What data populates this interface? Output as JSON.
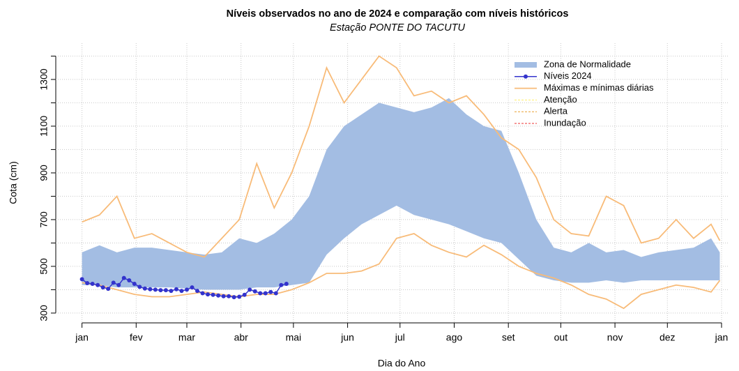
{
  "chart_data": {
    "type": "line",
    "title": "Níveis observados no ano de 2024 e comparação com níveis históricos",
    "subtitle": "Estação PONTE DO TACUTU",
    "xlabel": "Dia do Ano",
    "ylabel": "Cota (cm)",
    "xlim": [
      -14,
      371
    ],
    "ylim": [
      258,
      1455
    ],
    "xticks": [
      {
        "value": 1,
        "label": "jan"
      },
      {
        "value": 32,
        "label": "fev"
      },
      {
        "value": 61,
        "label": "mar"
      },
      {
        "value": 92,
        "label": "abr"
      },
      {
        "value": 122,
        "label": "mai"
      },
      {
        "value": 153,
        "label": "jun"
      },
      {
        "value": 183,
        "label": "jul"
      },
      {
        "value": 214,
        "label": "ago"
      },
      {
        "value": 245,
        "label": "set"
      },
      {
        "value": 275,
        "label": "out"
      },
      {
        "value": 306,
        "label": "nov"
      },
      {
        "value": 336,
        "label": "dez"
      },
      {
        "value": 367,
        "label": "jan"
      }
    ],
    "yticks": [
      300,
      500,
      700,
      900,
      1100,
      1300
    ],
    "yminor_ticks": [
      400,
      600,
      800,
      1000,
      1200,
      1400
    ],
    "grid": true,
    "legend": "top-right",
    "x": [
      1,
      11,
      21,
      31,
      41,
      51,
      61,
      71,
      81,
      91,
      101,
      111,
      121,
      131,
      141,
      151,
      161,
      171,
      181,
      191,
      201,
      211,
      221,
      231,
      241,
      251,
      261,
      271,
      281,
      291,
      301,
      311,
      321,
      331,
      341,
      351,
      361,
      366
    ],
    "band": {
      "name": "Zona de Normalidade",
      "color": "#a3bde3",
      "upper": [
        560,
        590,
        560,
        580,
        580,
        570,
        560,
        550,
        560,
        620,
        600,
        640,
        700,
        800,
        1000,
        1100,
        1150,
        1200,
        1180,
        1160,
        1180,
        1220,
        1150,
        1100,
        1080,
        900,
        700,
        580,
        560,
        600,
        560,
        570,
        540,
        560,
        570,
        580,
        620,
        560
      ],
      "lower": [
        420,
        420,
        410,
        410,
        410,
        410,
        405,
        400,
        400,
        400,
        410,
        410,
        420,
        430,
        550,
        620,
        680,
        720,
        760,
        720,
        700,
        680,
        650,
        620,
        600,
        530,
        460,
        440,
        430,
        430,
        440,
        430,
        440,
        440,
        440,
        440,
        440,
        440
      ]
    },
    "extremes": {
      "name": "Máximas e mínimas diárias",
      "color": "#f8bb78",
      "max": [
        690,
        720,
        800,
        620,
        640,
        600,
        560,
        540,
        620,
        700,
        940,
        750,
        900,
        1100,
        1350,
        1200,
        1300,
        1400,
        1350,
        1230,
        1250,
        1200,
        1230,
        1150,
        1050,
        1000,
        880,
        700,
        640,
        630,
        800,
        760,
        600,
        620,
        700,
        620,
        680,
        610
      ],
      "min": [
        430,
        420,
        400,
        380,
        370,
        370,
        380,
        390,
        380,
        370,
        380,
        380,
        400,
        430,
        470,
        470,
        480,
        510,
        620,
        640,
        590,
        560,
        540,
        590,
        550,
        500,
        470,
        450,
        420,
        380,
        360,
        320,
        380,
        400,
        420,
        410,
        390,
        440
      ]
    },
    "series": [
      {
        "name": "Níveis 2024",
        "color": "#3333cc",
        "x": [
          1,
          4,
          7,
          10,
          13,
          16,
          19,
          22,
          25,
          28,
          31,
          34,
          37,
          40,
          43,
          46,
          49,
          52,
          55,
          58,
          61,
          64,
          67,
          70,
          73,
          76,
          79,
          82,
          85,
          88,
          91,
          94,
          97,
          100,
          103,
          106,
          109,
          112,
          115,
          118
        ],
        "values": [
          445,
          428,
          425,
          420,
          410,
          404,
          430,
          420,
          450,
          440,
          425,
          412,
          405,
          402,
          400,
          398,
          398,
          395,
          402,
          395,
          400,
          410,
          395,
          385,
          380,
          378,
          375,
          372,
          372,
          368,
          370,
          378,
          400,
          393,
          385,
          385,
          390,
          385,
          420,
          425
        ]
      }
    ],
    "references": [
      {
        "name": "Atenção",
        "color": "#ffee66"
      },
      {
        "name": "Alerta",
        "color": "#e8a030"
      },
      {
        "name": "Inundação",
        "color": "#ee3333"
      }
    ]
  }
}
